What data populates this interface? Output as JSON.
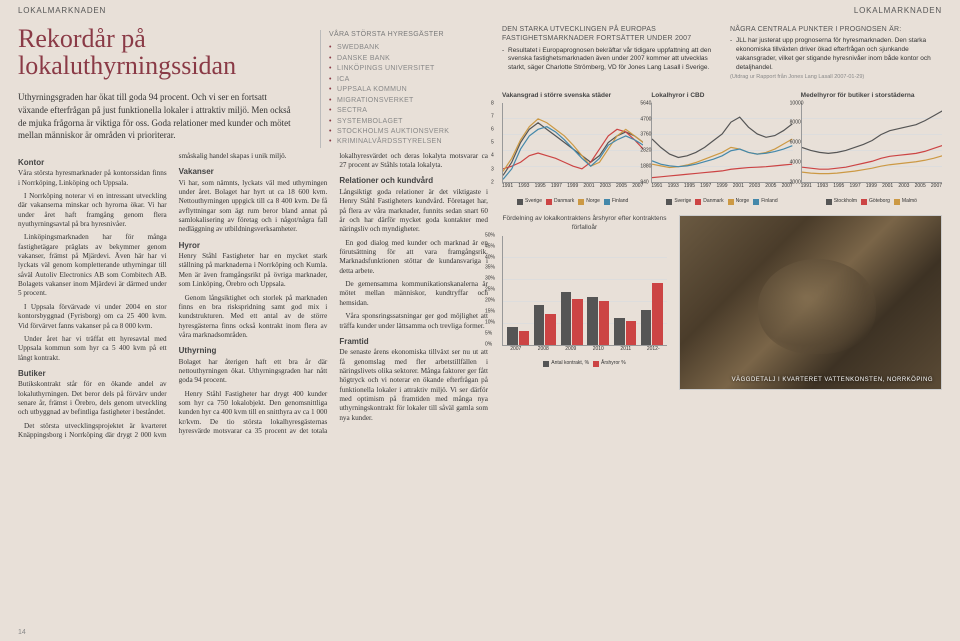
{
  "header": {
    "left": "LOKALMARKNADEN",
    "right": "LOKALMARKNADEN"
  },
  "title": "Rekordår på\nlokaluthyrningssidan",
  "intro": "Uthyrningsgraden har ökat till goda 94 procent. Och vi ser en fortsatt växande efterfrågan på just funktionella lokaler i attraktiv miljö. Men också de mjuka frågorna är viktiga för oss. Goda relationer med kunder och mötet mellan människor är områden vi prioriterar.",
  "sections": {
    "kontor_h": "Kontor",
    "kontor_p1": "Våra största hyresmarknader på kontorssidan finns i Norrköping, Linköping och Uppsala.",
    "kontor_p2": "I Norrköping noterar vi en intressant utveckling där vakanserna minskar och hyrorna ökar. Vi har under året haft framgång genom flera nyuthyrningsavtal på bra hyresnivåer.",
    "kontor_p3": "Linköpingsmarknaden har för många fastighetägare präglats av bekymmer genom vakanser, främst på Mjärdevi. Även här har vi lyckats väl genom kompletterande uthyrningar till såväl Autoliv Electronics AB som Combitech AB. Bolagets vakanser inom Mjärdevi är därmed under 5 procent.",
    "kontor_p4": "I Uppsala förvärvade vi under 2004 en stor kontorsbyggnad (Fyrisborg) om ca 25 400 kvm. Vid förvärvet fanns vakanser på ca 8 000 kvm.",
    "kontor_p5": "Under året har vi träffat ett hyresavtal med Uppsala kommun som hyr ca 5 400 kvm på ett långt kontrakt.",
    "butiker_h": "Butiker",
    "butiker_p1": "Butikskontrakt står för en ökande andel av lokaluthyrningen. Det beror dels på förvärv under senare år, främst i Örebro, dels genom utveckling och utbyggnad av befintliga fastigheter i beståndet.",
    "butiker_p2": "Det största utvecklingsprojektet är kvarteret Knäppingsborg i Norrköping där drygt 2 000 kvm småskalig handel skapas i unik miljö.",
    "vakanser_h": "Vakanser",
    "vakanser_p1": "Vi har, som nämnts, lyckats väl med uthyrningen under året. Bolaget har hyrt ut ca 18 600 kvm. Nettouthyrningen uppgick till ca 8 400 kvm. De få avflyttningar som ägt rum beror bland annat på samlokalisering av företag och i något/några fall nedläggning av utbildningsverksamheter.",
    "hyror_h": "Hyror",
    "hyror_p1": "Henry Ståhl Fastigheter har en mycket stark ställning på marknaderna i Norrköping och Kumla. Men är även framgångsrikt på övriga marknader, som Linköping, Örebro och Uppsala.",
    "hyror_p2": "Genom långsiktighet och storlek på marknaden finns en bra riskspridning samt god mix i kundstrukturen. Med ett antal av de större hyresgästerna finns också kontrakt inom flera av våra marknadsområden.",
    "uthyrning_h": "Uthyrning",
    "uthyrning_p1": "Bolaget har återigen haft ett bra år där nettouthyrningen ökat. Uthyrningsgraden har nått goda 94 procent.",
    "uthyrning_p2": "Henry Ståhl Fastigheter har drygt 400 kunder som hyr ca 750 lokalobjekt. Den genomsnittliga kunden hyr ca 400 kvm till en snitthyra av ca 1 000 kr/kvm. De tio största lokalhyresgästernas hyresvärde motsvarar ca 35 procent av det totala lokalhyresvärdet och deras lokalyta motsvarar ca 27 procent av Ståhls totala lokalyta.",
    "relationer_h": "Relationer och kundvård",
    "relationer_p1": "Långsiktigt goda relationer är det viktigaste i Henry Ståhl Fastigheters kundvård. Företaget har, på flera av våra marknader, funnits sedan snart 60 år och har därför mycket goda kontakter med näringsliv och myndigheter.",
    "relationer_p2": "En god dialog med kunder och marknad är en förutsättning för att vara framgångsrik. Marknadsfunktionen stöttar de kundansvariga i detta arbete.",
    "relationer_p3": "De gemensamma kommunikationskanalerna är mötet mellan människor, kundtryffar och hemsidan.",
    "relationer_p4": "Våra sponsringssatsningar ger god möjlighet att träffa kunder under lättsamma och trevliga former.",
    "framtid_h": "Framtid",
    "framtid_p1": "De senaste årens ekonomiska tillväxt ser nu ut att få genomslag med fler arbetstillfällen i näringslivets olika sektorer. Många faktorer ger fått högtryck och vi noterar en ökande efterfrågan på funktionella lokaler i attraktiv miljö. Vi ser därför med optimism på framtiden med många nya uthyrningskontrakt för lokaler till såväl gamla som nya kunder."
  },
  "tenants": {
    "title": "VÅRA STÖRSTA HYRESGÄSTER",
    "items": [
      "SWEDBANK",
      "DANSKE BANK",
      "LINKÖPINGS UNIVERSITET",
      "ICA",
      "UPPSALA KOMMUN",
      "MIGRATIONSVERKET",
      "SECTRA",
      "SYSTEMBOLAGET",
      "STOCKHOLMS AUKTIONSVERK",
      "KRIMINALVÅRDSSTYRELSEN"
    ]
  },
  "quote": {
    "title": "DEN STARKA UTVECKLINGEN PÅ EUROPAS FASTIGHETSMARKNADER FORTSÄTTER UNDER 2007",
    "body": "Resultatet i Europaprognosen bekräftar vår tidigare uppfattning att den svenska fastighetsmarknaden även under 2007 kommer att utvecklas starkt, säger Charlotte Strömberg, VD för Jones Lang Lasall i Sverige.",
    "title2": "NÅGRA CENTRALA PUNKTER I PROGNOSEN ÄR:",
    "body2": "JLL har justerat upp prognoserna för hyresmarknaden. Den starka ekonomiska tillväxten driver ökad efterfrågan och sjunkande vakansgrader, vilket ger stigande hyresnivåer inom både kontor och detaljhandel.",
    "citation": "(Utdrag ur Rapport från Jones Lang Lasall 2007-01-29)"
  },
  "chart1": {
    "title": "Vakansgrad i större svenska städer",
    "ylabel": "%",
    "ylim": [
      2,
      8
    ],
    "yticks": [
      2,
      3,
      4,
      5,
      6,
      7,
      8
    ],
    "xticks": [
      1991,
      1992,
      1993,
      1994,
      1995,
      1996,
      1997,
      1998,
      1999,
      2000,
      2001,
      2002,
      2003,
      2004,
      2005,
      2006,
      2007
    ],
    "series": [
      {
        "name": "Sverige",
        "color": "#555555",
        "data": [
          2.5,
          3.5,
          5,
          6,
          6.5,
          6,
          5.5,
          5,
          4.5,
          4,
          3.5,
          4,
          5,
          5.5,
          5.8,
          5.5,
          5
        ]
      },
      {
        "name": "Danmark",
        "color": "#cc4444",
        "data": [
          3,
          3.2,
          3.5,
          4,
          4.2,
          4,
          3.8,
          3.5,
          3.2,
          3,
          3.5,
          4.5,
          5.5,
          6,
          5.8,
          5.2,
          4.5
        ]
      },
      {
        "name": "Norge",
        "color": "#cc9944",
        "data": [
          2.8,
          3.8,
          5.2,
          6.2,
          6.8,
          6.5,
          6,
          5.5,
          4.8,
          4,
          3.2,
          3.5,
          4.5,
          5.5,
          6,
          5.5,
          5
        ]
      },
      {
        "name": "Finland",
        "color": "#4488aa",
        "data": [
          2.2,
          3,
          4.5,
          5.5,
          6,
          6.2,
          5.8,
          5.2,
          4.5,
          3.8,
          3.2,
          3.8,
          4.8,
          5.2,
          5.5,
          5.2,
          4.8
        ]
      }
    ]
  },
  "chart2": {
    "title": "Lokalhyror i CBD",
    "ylabel": "SEK/kvm/år",
    "ylim": [
      940,
      5640
    ],
    "yticks": [
      940,
      1880,
      2820,
      3760,
      4700,
      5640
    ],
    "xticks": [
      1991,
      1992,
      1993,
      1994,
      1995,
      1996,
      1997,
      1998,
      1999,
      2000,
      2001,
      2002,
      2003,
      2004,
      2005,
      2006,
      2007
    ],
    "series": [
      {
        "name": "Sverige",
        "color": "#555555",
        "data": [
          3500,
          3000,
          2600,
          2400,
          2500,
          2700,
          3000,
          3400,
          3800,
          4500,
          4800,
          4200,
          3800,
          3600,
          3700,
          4000,
          4400
        ]
      },
      {
        "name": "Danmark",
        "color": "#cc4444",
        "data": [
          1200,
          1250,
          1300,
          1350,
          1400,
          1450,
          1500,
          1550,
          1600,
          1700,
          1750,
          1800,
          1820,
          1850,
          1900,
          1950,
          2000
        ]
      },
      {
        "name": "Norge",
        "color": "#cc9944",
        "data": [
          2000,
          1900,
          1800,
          1850,
          1950,
          2100,
          2300,
          2500,
          2700,
          3000,
          2900,
          2700,
          2600,
          2700,
          2900,
          3200,
          3500
        ]
      },
      {
        "name": "Finland",
        "color": "#4488aa",
        "data": [
          2200,
          2000,
          1900,
          1850,
          1900,
          2000,
          2150,
          2300,
          2500,
          2800,
          2900,
          2700,
          2600,
          2650,
          2750,
          2900,
          3100
        ]
      }
    ]
  },
  "chart3": {
    "title": "Medelhyror för butiker i storstäderna",
    "ylabel": "SEK/kvm",
    "ylim": [
      2000,
      10000
    ],
    "yticks": [
      2000,
      4000,
      6000,
      8000,
      10000
    ],
    "xticks": [
      1991,
      1992,
      1993,
      1994,
      1995,
      1996,
      1997,
      1998,
      1999,
      2000,
      2001,
      2002,
      2003,
      2004,
      2005,
      2006,
      2007
    ],
    "series": [
      {
        "name": "Stockholm",
        "color": "#555555",
        "data": [
          5500,
          5200,
          5000,
          4900,
          5000,
          5200,
          5500,
          5800,
          6200,
          6800,
          7200,
          7400,
          7600,
          7800,
          8200,
          8700,
          9200
        ]
      },
      {
        "name": "Göteborg",
        "color": "#cc4444",
        "data": [
          3500,
          3400,
          3300,
          3300,
          3400,
          3500,
          3700,
          3900,
          4100,
          4400,
          4600,
          4700,
          4800,
          4900,
          5100,
          5400,
          5700
        ]
      },
      {
        "name": "Malmö",
        "color": "#cc9944",
        "data": [
          3000,
          2900,
          2850,
          2850,
          2900,
          3000,
          3100,
          3250,
          3400,
          3600,
          3750,
          3850,
          3950,
          4050,
          4200,
          4400,
          4650
        ]
      }
    ]
  },
  "barchart": {
    "title": "Fördelning av lokalkontraktens årshyror efter kontraktens förfalloår",
    "ylabel": "%",
    "ylim": [
      0,
      50
    ],
    "yticks": [
      0,
      5,
      10,
      15,
      20,
      25,
      30,
      35,
      40,
      45,
      50
    ],
    "xticks": [
      2007,
      2008,
      2009,
      2010,
      2011,
      "2012-"
    ],
    "series": [
      {
        "name": "Antal kontrakt, %",
        "color": "#555555",
        "data": [
          8,
          18,
          24,
          22,
          12,
          16
        ]
      },
      {
        "name": "Årshyror %",
        "color": "#cc4444",
        "data": [
          6,
          14,
          21,
          20,
          11,
          28
        ]
      }
    ]
  },
  "photo_caption": "VÄGGDETALJ I KVARTERET VATTENKONSTEN, NORRKÖPING",
  "page_num": "14"
}
